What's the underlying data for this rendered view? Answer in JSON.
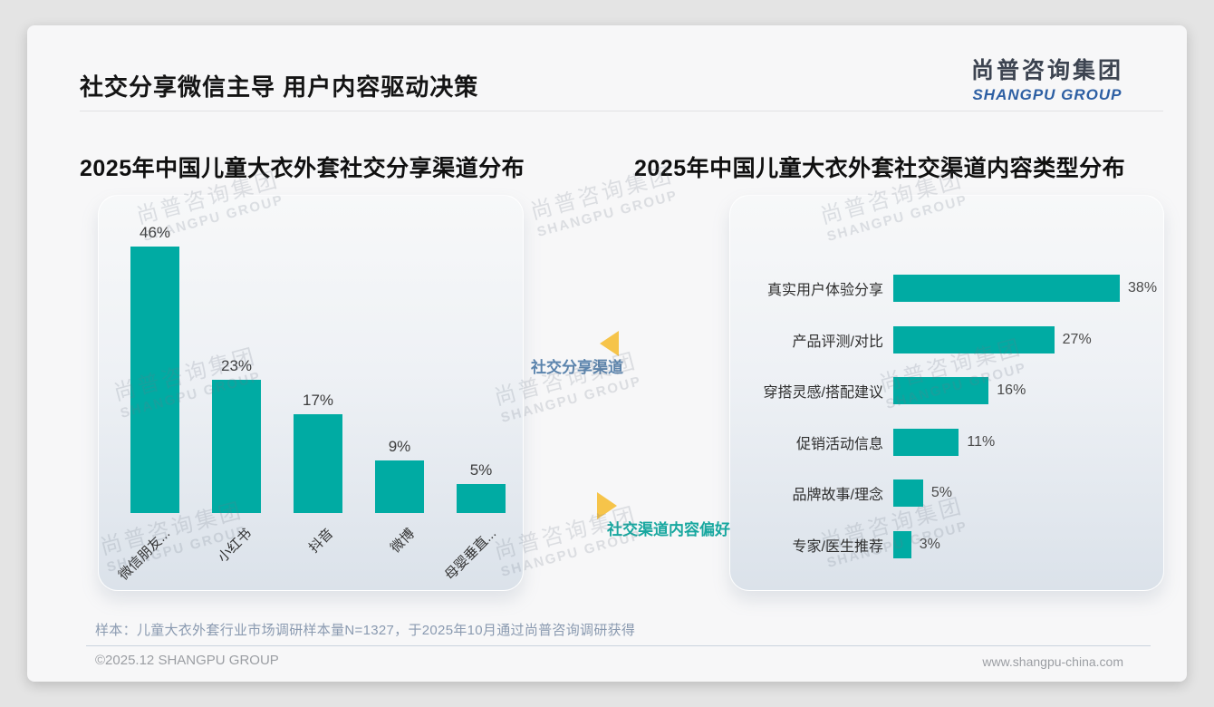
{
  "page": {
    "title": "社交分享微信主导 用户内容驱动决策",
    "logo": {
      "cn": "尚普咨询集团",
      "en": "SHANGPU GROUP"
    },
    "watermark": {
      "cn": "尚普咨询集团",
      "en": "SHANGPU GROUP"
    },
    "footnote": "样本：儿童大衣外套行业市场调研样本量N=1327，于2025年10月通过尚普咨询调研获得",
    "copyright": "©2025.12 SHANGPU GROUP",
    "website": "www.shangpu-china.com"
  },
  "annotations": {
    "share_channel_label": "社交分享渠道",
    "content_preference_label": "社交渠道内容偏好"
  },
  "colors": {
    "bar_teal": "#00ABA3",
    "arrow_yellow": "#F6C44A",
    "annotation_blue": "#5B84AD",
    "annotation_teal": "#17A79F"
  },
  "chart_data": [
    {
      "type": "bar",
      "orientation": "vertical",
      "title": "2025年中国儿童大衣外套社交分享渠道分布",
      "categories": [
        "微信朋友...",
        "小红书",
        "抖音",
        "微博",
        "母婴垂直..."
      ],
      "values": [
        46,
        23,
        17,
        9,
        5
      ],
      "unit": "%",
      "ylim": [
        0,
        50
      ],
      "grid": false,
      "legend": false,
      "bar_color": "#00ABA3"
    },
    {
      "type": "bar",
      "orientation": "horizontal",
      "title": "2025年中国儿童大衣外套社交渠道内容类型分布",
      "categories": [
        "真实用户体验分享",
        "产品评测/对比",
        "穿搭灵感/搭配建议",
        "促销活动信息",
        "品牌故事/理念",
        "专家/医生推荐"
      ],
      "values": [
        38,
        27,
        16,
        11,
        5,
        3
      ],
      "unit": "%",
      "xlim": [
        0,
        40
      ],
      "grid": false,
      "legend": false,
      "bar_color": "#00ABA3"
    }
  ]
}
